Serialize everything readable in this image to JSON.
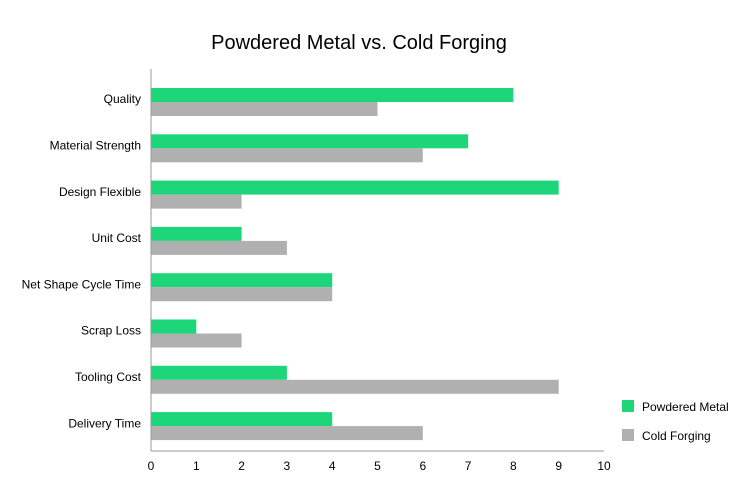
{
  "chart_data": {
    "type": "bar",
    "orientation": "horizontal",
    "title": "Powdered Metal vs. Cold Forging",
    "xlabel": "",
    "ylabel": "",
    "categories": [
      "Quality",
      "Material Strength",
      "Design Flexible",
      "Unit Cost",
      "Net Shape Cycle Time",
      "Scrap Loss",
      "Tooling Cost",
      "Delivery Time"
    ],
    "series": [
      {
        "name": "Powdered Metal",
        "color": "#1ed67a",
        "values": [
          8,
          7,
          9,
          2,
          4,
          1,
          3,
          4
        ]
      },
      {
        "name": "Cold Forging",
        "color": "#b0b0b0",
        "values": [
          5,
          6,
          2,
          3,
          4,
          2,
          9,
          6
        ]
      }
    ],
    "xlim": [
      0,
      10
    ],
    "xticks": [
      "0",
      "1",
      "2",
      "3",
      "4",
      "5",
      "6",
      "7",
      "8",
      "9",
      "10"
    ],
    "grid": false,
    "legend_position": "bottom-right"
  }
}
